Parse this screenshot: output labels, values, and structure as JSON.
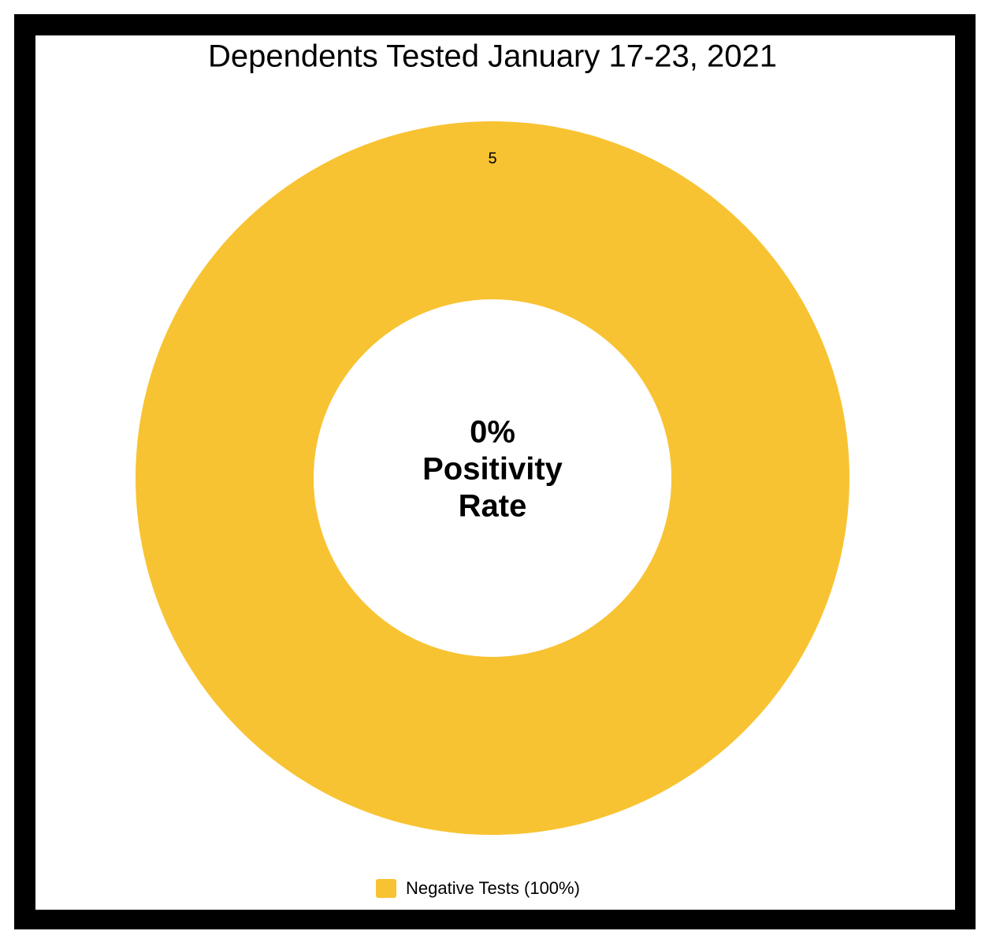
{
  "chart_data": {
    "type": "donut",
    "title": "Dependents Tested January 17-23, 2021",
    "categories": [
      "Negative Tests (100%)"
    ],
    "values": [
      5
    ],
    "colors": [
      "#f8c332"
    ],
    "center_text": [
      "0%",
      "Positivity",
      "Rate"
    ],
    "legend": "bottom"
  }
}
